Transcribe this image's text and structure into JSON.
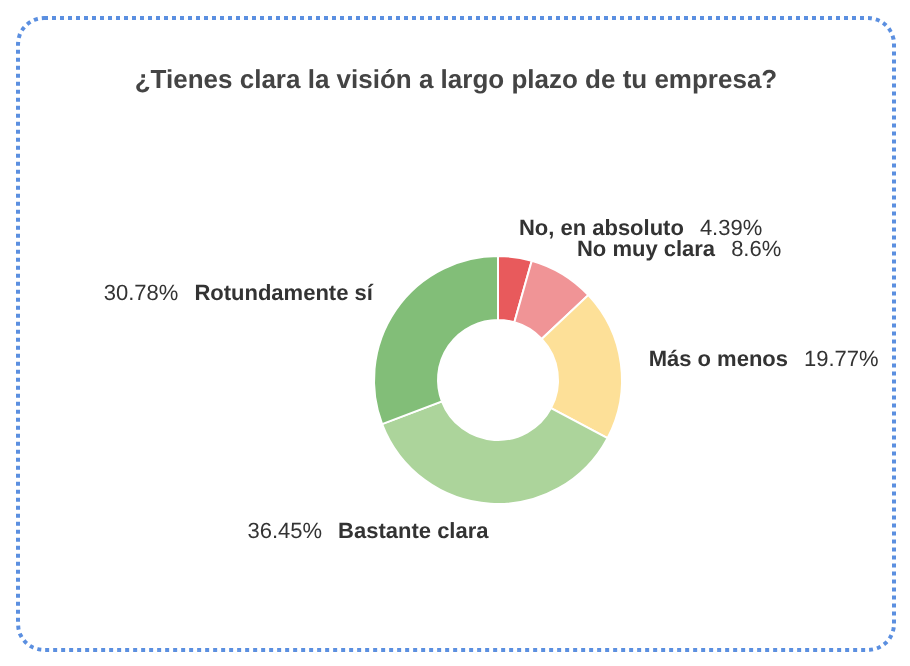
{
  "chart_data": {
    "type": "donut",
    "title": "¿Tienes clara la visión a largo plazo de tu empresa?",
    "categories": [
      "No, en absoluto",
      "No muy clara",
      "Más o menos",
      "Bastante clara",
      "Rotundamente sí"
    ],
    "values": [
      4.39,
      8.6,
      19.77,
      36.45,
      30.78
    ],
    "value_labels": [
      "4.39%",
      "8.6%",
      "19.77%",
      "36.45%",
      "30.78%"
    ],
    "colors": [
      "#e85a5c",
      "#f09496",
      "#fde098",
      "#acd49b",
      "#82be78"
    ]
  }
}
